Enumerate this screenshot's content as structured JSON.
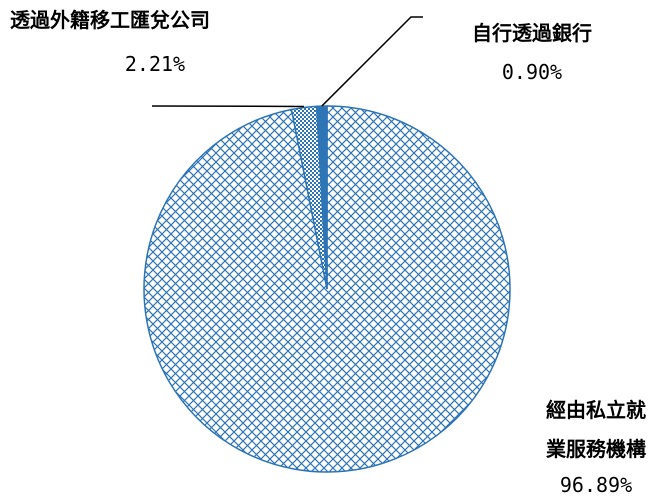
{
  "chart_data": {
    "type": "pie",
    "title": "",
    "slices": [
      {
        "label": "經由私立就業服務機構",
        "label_lines": [
          "經由私立就",
          "業服務機構"
        ],
        "value": 96.89,
        "display": "96.89%",
        "pattern": "crosshatch"
      },
      {
        "label": "透過外籍移工匯兌公司",
        "label_lines": [
          "透過外籍移工匯兌公司"
        ],
        "value": 2.21,
        "display": "2.21%",
        "pattern": "dense-check"
      },
      {
        "label": "自行透過銀行",
        "label_lines": [
          "自行透過銀行"
        ],
        "value": 0.9,
        "display": "0.90%",
        "pattern": "solid"
      }
    ],
    "colors": {
      "stroke": "#2e75b6",
      "fill": "#2e75b6",
      "background": "#ffffff",
      "leader": "#000000"
    }
  }
}
